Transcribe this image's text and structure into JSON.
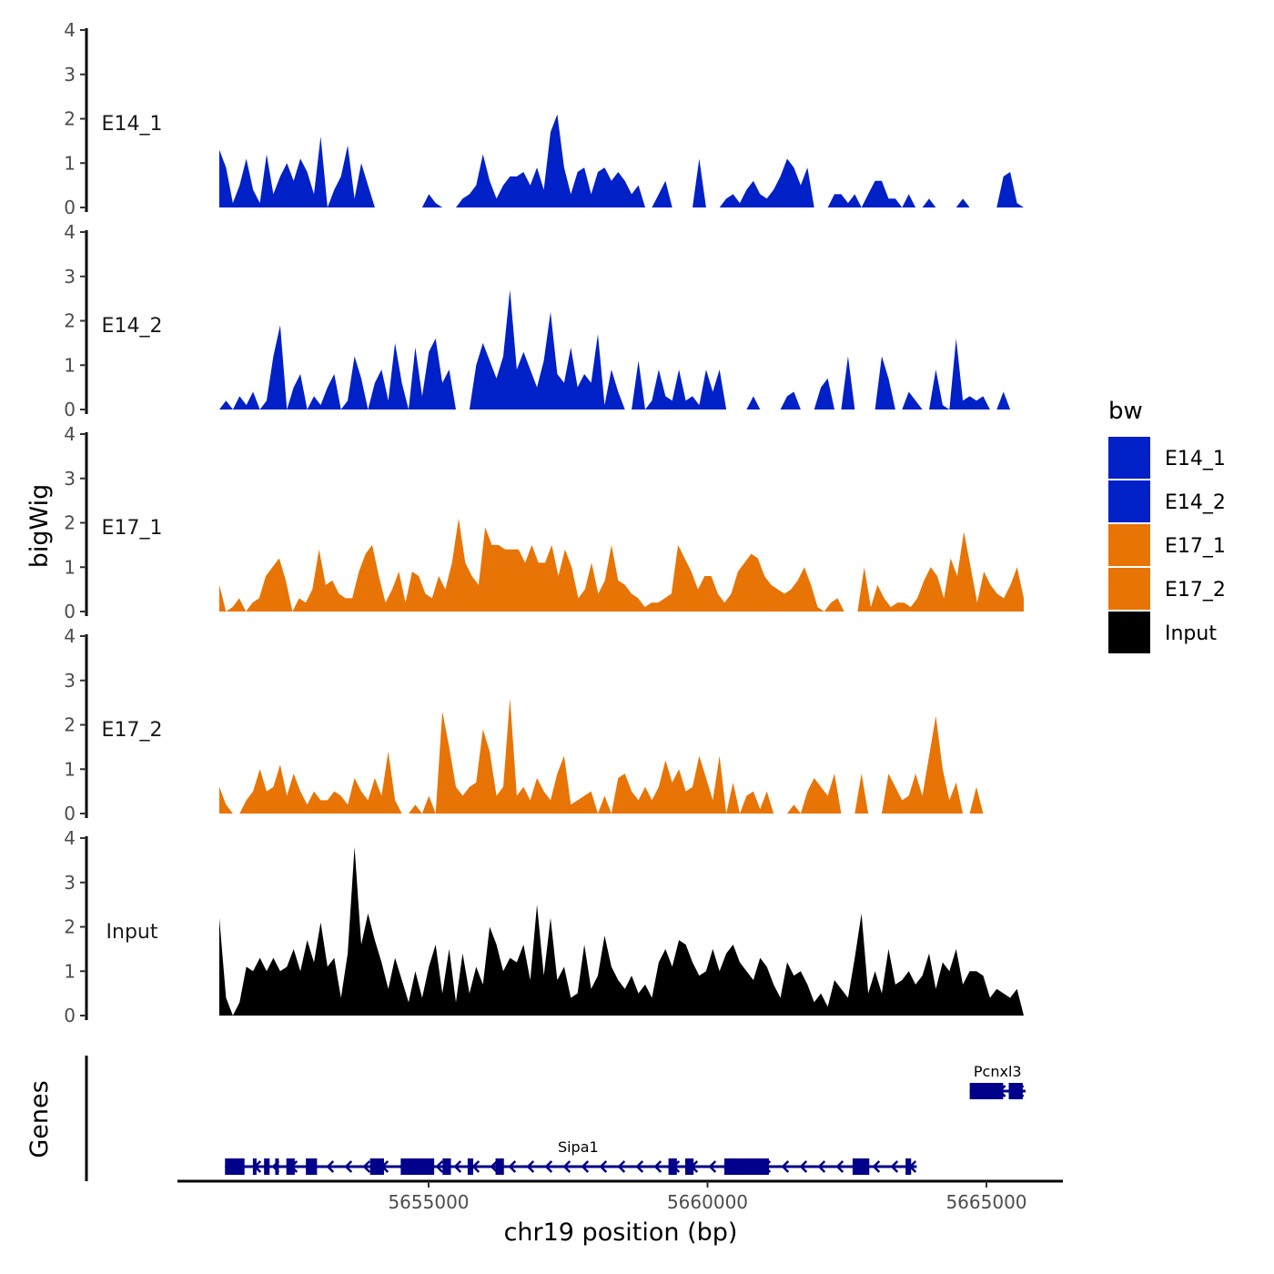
{
  "chart_data": {
    "type": "area",
    "ylabel": "bigWig",
    "xlabel": "chr19 position (bp)",
    "x_range": [
      5651200,
      5665700
    ],
    "x_ticks": [
      5655000,
      5660000,
      5665000
    ],
    "x_tick_labels": [
      "5655000",
      "5660000",
      "5665000"
    ],
    "ylim": [
      0,
      4
    ],
    "y_ticks": [
      0,
      1,
      2,
      3,
      4
    ],
    "tracks": [
      {
        "name": "E14_1",
        "color": "#0020C8",
        "values": [
          1.3,
          0.9,
          0.1,
          0.5,
          1.1,
          0.4,
          0.1,
          1.2,
          0.3,
          0.7,
          1.0,
          0.6,
          1.1,
          0.8,
          0.3,
          1.6,
          0.0,
          0.4,
          0.7,
          1.4,
          0.2,
          1.0,
          0.5,
          0.0,
          0.0,
          0.0,
          0.0,
          0.0,
          0.0,
          0.0,
          0.0,
          0.3,
          0.1,
          0.0,
          0.0,
          0.0,
          0.2,
          0.3,
          0.5,
          1.2,
          0.6,
          0.2,
          0.5,
          0.7,
          0.7,
          0.8,
          0.5,
          0.9,
          0.4,
          1.7,
          2.1,
          0.9,
          0.3,
          0.8,
          0.9,
          0.3,
          0.8,
          0.9,
          0.6,
          0.8,
          0.6,
          0.3,
          0.5,
          0.0,
          0.0,
          0.3,
          0.6,
          0.0,
          0.0,
          0.0,
          0.0,
          1.1,
          0.0,
          0.0,
          0.0,
          0.2,
          0.3,
          0.1,
          0.4,
          0.6,
          0.3,
          0.2,
          0.4,
          0.7,
          1.1,
          0.9,
          0.5,
          0.9,
          0.0,
          0.0,
          0.0,
          0.3,
          0.3,
          0.1,
          0.3,
          0.0,
          0.3,
          0.6,
          0.6,
          0.2,
          0.2,
          0.0,
          0.3,
          0.0,
          0.0,
          0.2,
          0.0,
          0.0,
          0.0,
          0.0,
          0.2,
          0.0,
          0.0,
          0.0,
          0.0,
          0.0,
          0.7,
          0.8,
          0.1,
          0.0
        ]
      },
      {
        "name": "E14_2",
        "color": "#0020C8",
        "values": [
          0.0,
          0.2,
          0.0,
          0.3,
          0.1,
          0.4,
          0.0,
          0.2,
          1.2,
          1.9,
          0.0,
          0.5,
          0.8,
          0.0,
          0.3,
          0.1,
          0.5,
          0.8,
          0.0,
          0.2,
          1.2,
          0.7,
          0.0,
          0.6,
          0.9,
          0.2,
          1.5,
          0.6,
          0.0,
          1.4,
          0.3,
          1.3,
          1.6,
          0.6,
          0.9,
          0.0,
          0.0,
          0.0,
          1.0,
          1.5,
          1.1,
          0.7,
          1.2,
          2.7,
          0.9,
          1.3,
          0.9,
          0.5,
          1.1,
          2.2,
          0.8,
          0.6,
          1.4,
          0.5,
          0.8,
          0.6,
          1.7,
          0.1,
          0.9,
          0.4,
          0.0,
          0.0,
          1.1,
          0.0,
          0.2,
          0.9,
          0.3,
          0.2,
          0.9,
          0.2,
          0.3,
          0.1,
          0.9,
          0.4,
          0.9,
          0.0,
          0.0,
          0.0,
          0.0,
          0.3,
          0.0,
          0.0,
          0.0,
          0.0,
          0.3,
          0.4,
          0.0,
          0.0,
          0.0,
          0.5,
          0.7,
          0.0,
          0.0,
          1.2,
          0.0,
          0.0,
          0.0,
          0.0,
          1.2,
          0.7,
          0.0,
          0.0,
          0.4,
          0.2,
          0.0,
          0.0,
          0.9,
          0.1,
          0.0,
          1.6,
          0.2,
          0.3,
          0.2,
          0.3,
          0.0,
          0.0,
          0.4,
          0.0,
          0.0,
          0.0
        ]
      },
      {
        "name": "E17_1",
        "color": "#E87405",
        "values": [
          0.6,
          0.0,
          0.1,
          0.3,
          0.0,
          0.2,
          0.3,
          0.8,
          1.0,
          1.2,
          0.7,
          0.0,
          0.3,
          0.2,
          0.5,
          1.4,
          0.6,
          0.7,
          0.4,
          0.3,
          0.3,
          0.9,
          1.3,
          1.5,
          0.8,
          0.2,
          0.5,
          0.9,
          0.2,
          0.9,
          0.8,
          0.4,
          0.3,
          0.8,
          0.5,
          1.1,
          2.1,
          1.1,
          0.8,
          0.6,
          1.9,
          1.5,
          1.5,
          1.4,
          1.4,
          1.4,
          1.1,
          1.5,
          1.1,
          1.1,
          1.5,
          0.8,
          1.4,
          1.0,
          0.3,
          0.5,
          1.1,
          0.4,
          0.7,
          1.5,
          0.7,
          0.6,
          0.4,
          0.3,
          0.1,
          0.2,
          0.2,
          0.3,
          0.4,
          1.5,
          1.2,
          0.9,
          0.5,
          0.8,
          0.8,
          0.4,
          0.2,
          0.4,
          0.9,
          1.1,
          1.3,
          1.2,
          0.8,
          0.6,
          0.5,
          0.4,
          0.5,
          0.7,
          1.0,
          0.6,
          0.1,
          0.0,
          0.2,
          0.3,
          0.0,
          0.0,
          0.0,
          1.0,
          0.1,
          0.6,
          0.3,
          0.1,
          0.2,
          0.2,
          0.1,
          0.3,
          0.7,
          1.0,
          0.8,
          0.3,
          1.2,
          0.8,
          1.8,
          1.0,
          0.2,
          0.9,
          0.6,
          0.4,
          0.3,
          0.6,
          1.0,
          0.3
        ]
      },
      {
        "name": "E17_2",
        "color": "#E87405",
        "values": [
          0.6,
          0.2,
          0.0,
          0.0,
          0.3,
          0.5,
          1.0,
          0.5,
          0.6,
          1.1,
          0.4,
          0.9,
          0.5,
          0.2,
          0.5,
          0.3,
          0.3,
          0.5,
          0.4,
          0.2,
          0.8,
          0.5,
          0.3,
          0.8,
          0.4,
          1.4,
          0.3,
          0.0,
          0.0,
          0.2,
          0.0,
          0.4,
          0.0,
          2.3,
          1.5,
          0.6,
          0.4,
          0.6,
          0.7,
          1.9,
          1.4,
          0.4,
          0.6,
          2.6,
          0.4,
          0.6,
          0.3,
          0.8,
          0.5,
          0.3,
          0.9,
          1.3,
          0.2,
          0.3,
          0.4,
          0.5,
          0.0,
          0.4,
          0.0,
          0.8,
          0.9,
          0.5,
          0.3,
          0.6,
          0.3,
          0.6,
          1.2,
          0.7,
          1.0,
          0.5,
          0.6,
          1.3,
          0.8,
          0.3,
          1.3,
          0.0,
          0.7,
          0.0,
          0.4,
          0.5,
          0.1,
          0.5,
          0.0,
          0.0,
          0.0,
          0.2,
          0.0,
          0.5,
          0.8,
          0.6,
          0.4,
          0.9,
          0.0,
          0.0,
          0.0,
          0.9,
          0.0,
          0.0,
          0.0,
          0.9,
          0.6,
          0.3,
          0.4,
          0.9,
          0.4,
          1.3,
          2.2,
          1.0,
          0.3,
          0.7,
          0.0,
          0.0,
          0.6,
          0.0,
          0.0,
          0.0,
          0.0,
          0.0,
          0.0,
          0.0
        ]
      },
      {
        "name": "Input",
        "color": "#000000",
        "values": [
          2.2,
          0.4,
          0.0,
          0.3,
          1.1,
          1.0,
          1.3,
          1.0,
          1.3,
          1.0,
          1.1,
          1.5,
          1.0,
          1.7,
          1.2,
          2.1,
          1.1,
          1.3,
          0.4,
          1.4,
          3.8,
          1.6,
          2.3,
          1.7,
          1.2,
          0.6,
          1.3,
          0.8,
          0.3,
          1.0,
          0.4,
          1.1,
          1.6,
          0.5,
          1.5,
          0.3,
          1.4,
          0.5,
          1.1,
          0.7,
          2.0,
          1.6,
          1.0,
          1.3,
          1.2,
          1.6,
          0.8,
          2.5,
          0.9,
          2.2,
          0.8,
          1.1,
          0.4,
          0.5,
          1.6,
          0.6,
          0.9,
          1.8,
          1.1,
          0.8,
          0.6,
          0.9,
          0.5,
          0.7,
          0.4,
          1.2,
          1.5,
          1.1,
          1.7,
          1.6,
          1.2,
          0.9,
          1.0,
          1.5,
          1.0,
          1.4,
          1.6,
          1.2,
          1.0,
          0.8,
          1.3,
          1.1,
          0.7,
          0.4,
          1.2,
          0.9,
          1.0,
          0.7,
          0.3,
          0.5,
          0.2,
          0.8,
          0.6,
          0.4,
          1.3,
          2.3,
          0.5,
          1.0,
          0.5,
          1.5,
          0.7,
          0.8,
          1.0,
          0.7,
          0.9,
          1.4,
          0.6,
          1.2,
          1.0,
          1.5,
          0.7,
          1.0,
          1.0,
          0.9,
          0.4,
          0.6,
          0.5,
          0.4,
          0.6,
          0.0
        ]
      }
    ],
    "genes": [
      {
        "name": "Sipa1",
        "start": 5651350,
        "end": 5663750,
        "strand": "-",
        "row": "lower",
        "exons": [
          [
            5651350,
            5651700
          ],
          [
            5651850,
            5651900
          ],
          [
            5652050,
            5652150
          ],
          [
            5652250,
            5652300
          ],
          [
            5652450,
            5652600
          ],
          [
            5652800,
            5653000
          ],
          [
            5653950,
            5654200
          ],
          [
            5654500,
            5655100
          ],
          [
            5655250,
            5655400
          ],
          [
            5655700,
            5655800
          ],
          [
            5656200,
            5656350
          ],
          [
            5659300,
            5659450
          ],
          [
            5659600,
            5659750
          ],
          [
            5660300,
            5661100
          ],
          [
            5662600,
            5662900
          ],
          [
            5663550,
            5663650
          ]
        ]
      },
      {
        "name": "Pcnxl3",
        "start": 5664700,
        "end": 5665700,
        "strand": "-",
        "row": "upper",
        "exons": [
          [
            5664700,
            5665300
          ],
          [
            5665400,
            5665650
          ]
        ]
      }
    ],
    "genes_axis_label": "Genes",
    "legend": {
      "title": "bw",
      "entries": [
        {
          "label": "E14_1",
          "color": "#0020C8"
        },
        {
          "label": "E14_2",
          "color": "#0020C8"
        },
        {
          "label": "E17_1",
          "color": "#E87405"
        },
        {
          "label": "E17_2",
          "color": "#E87405"
        },
        {
          "label": "Input",
          "color": "#000000"
        }
      ]
    },
    "gene_color": "#00008B"
  }
}
